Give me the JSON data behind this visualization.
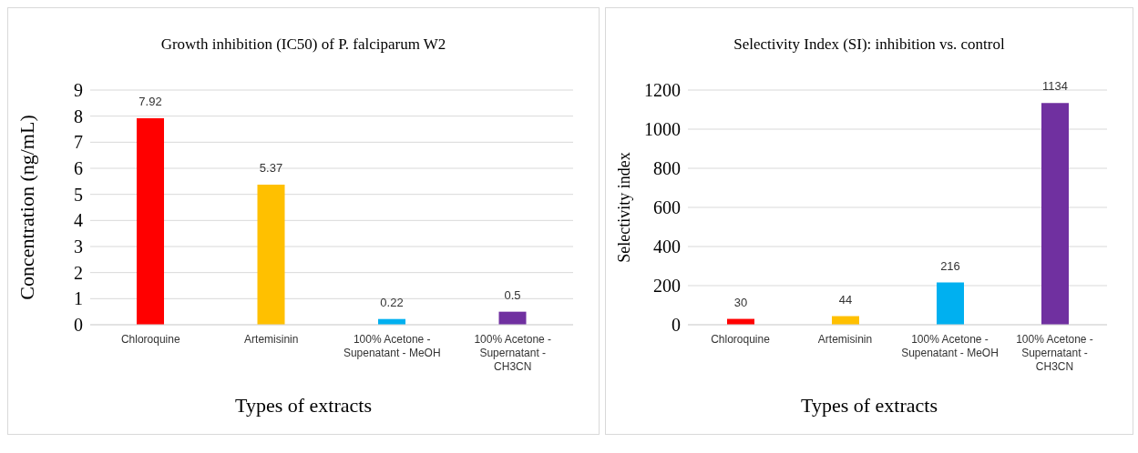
{
  "chart_data": [
    {
      "type": "bar",
      "title": "Growth inhibition (IC50) of P. falciparum W2",
      "xlabel": "Types of extracts",
      "ylabel": "Concentration (ng/mL)",
      "categories": [
        "Chloroquine",
        "Artemisinin",
        "100% Acetone - Supenatant - MeOH",
        "100% Acetone - Supernatant - CH3CN"
      ],
      "values": [
        7.92,
        5.37,
        0.22,
        0.5
      ],
      "colors": [
        "#ff0000",
        "#ffc000",
        "#00b0f0",
        "#7030a0"
      ],
      "ylim": [
        0,
        9
      ],
      "yticks": [
        0,
        1,
        2,
        3,
        4,
        5,
        6,
        7,
        8,
        9
      ],
      "grid": "y",
      "data_labels": true,
      "legend": false
    },
    {
      "type": "bar",
      "title": "Selectivity Index (SI):  inhibition vs. control",
      "xlabel": "Types of extracts",
      "ylabel": "Selectivity index",
      "categories": [
        "Chloroquine",
        "Artemisinin",
        "100% Acetone - Supenatant - MeOH",
        "100% Acetone - Supernatant - CH3CN"
      ],
      "values": [
        30,
        44,
        216,
        1134
      ],
      "colors": [
        "#ff0000",
        "#ffc000",
        "#00b0f0",
        "#7030a0"
      ],
      "ylim": [
        0,
        1200
      ],
      "yticks": [
        0,
        200,
        400,
        600,
        800,
        1000,
        1200
      ],
      "grid": "y",
      "data_labels": true,
      "legend": false
    }
  ]
}
